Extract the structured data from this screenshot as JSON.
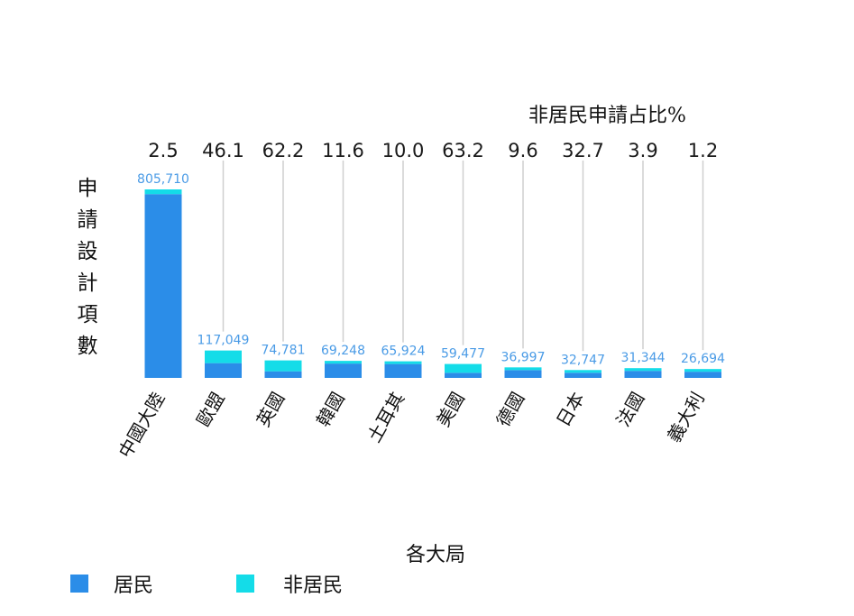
{
  "chart_data": {
    "type": "bar",
    "stacked": true,
    "xlabel": "各大局",
    "ylabel": "申請設計項數",
    "secondary_label": "非居民申請占比%",
    "categories": [
      "中國大陸",
      "歐盟",
      "英國",
      "韓國",
      "土耳其",
      "美國",
      "德國",
      "日本",
      "法國",
      "義大利"
    ],
    "totals": [
      805710,
      117049,
      74781,
      69248,
      65924,
      59477,
      36997,
      32747,
      31344,
      26694
    ],
    "total_labels": [
      "805,710",
      "117,049",
      "74,781",
      "69,248",
      "65,924",
      "59,477",
      "36,997",
      "32,747",
      "31,344",
      "26,694"
    ],
    "nonresident_share_pct": [
      "2.5",
      "46.1",
      "62.2",
      "11.6",
      "10.0",
      "63.2",
      "9.6",
      "32.7",
      "3.9",
      "1.2"
    ],
    "series": [
      {
        "name": "居民",
        "color": "#2b8de8",
        "values": [
          785580,
          63091,
          28267,
          61215,
          59332,
          21887,
          33445,
          22039,
          30122,
          26374
        ]
      },
      {
        "name": "非居民",
        "color": "#14dce8",
        "values": [
          20130,
          53958,
          46514,
          8033,
          6592,
          37590,
          3552,
          10708,
          1222,
          320
        ]
      }
    ],
    "ylim": [
      0,
      805710
    ],
    "grid": false,
    "legend": "bottom-left"
  }
}
